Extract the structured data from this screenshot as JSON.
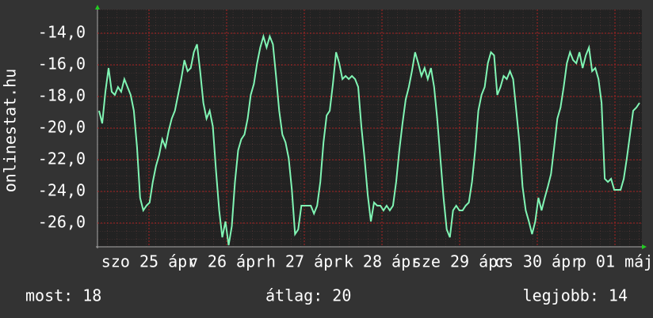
{
  "chart_data": {
    "type": "line",
    "ylabel": "onlinestat.hu",
    "x_labels": [
      "szo 25 ápr",
      "v 26 ápr",
      "h 27 ápr",
      "k 28 ápr",
      "sze 29 ápr",
      "cs 30 ápr",
      "p 01 máj"
    ],
    "ylim": [
      -27.5,
      -12.5
    ],
    "yticks": [
      {
        "value": -14,
        "label": "-14,0"
      },
      {
        "value": -16,
        "label": "-16,0"
      },
      {
        "value": -18,
        "label": "-18,0"
      },
      {
        "value": -20,
        "label": "-20,0"
      },
      {
        "value": -22,
        "label": "-22,0"
      },
      {
        "value": -24,
        "label": "-24,0"
      },
      {
        "value": -26,
        "label": "-26,0"
      }
    ],
    "grid": true,
    "color": "#80f5b4",
    "values": [
      -18.9,
      -19.7,
      -17.7,
      -16.2,
      -17.7,
      -17.9,
      -17.4,
      -17.7,
      -16.9,
      -17.4,
      -17.9,
      -18.9,
      -21.2,
      -24.4,
      -25.2,
      -24.9,
      -24.7,
      -23.4,
      -22.4,
      -21.7,
      -20.7,
      -21.2,
      -20.2,
      -19.4,
      -18.9,
      -17.9,
      -16.9,
      -15.7,
      -16.4,
      -16.2,
      -15.2,
      -14.7,
      -16.4,
      -18.4,
      -19.4,
      -18.9,
      -19.9,
      -22.7,
      -25.2,
      -26.9,
      -25.9,
      -27.4,
      -26.2,
      -23.4,
      -21.4,
      -20.7,
      -20.4,
      -19.4,
      -17.9,
      -17.2,
      -15.9,
      -14.9,
      -14.2,
      -14.9,
      -14.2,
      -14.7,
      -16.7,
      -18.9,
      -20.4,
      -20.9,
      -21.9,
      -23.9,
      -26.7,
      -26.4,
      -24.9,
      -24.9,
      -24.9,
      -24.9,
      -25.4,
      -24.9,
      -23.4,
      -20.9,
      -19.2,
      -18.9,
      -17.2,
      -15.2,
      -15.9,
      -16.9,
      -16.7,
      -16.9,
      -16.7,
      -16.9,
      -17.4,
      -19.9,
      -21.9,
      -24.2,
      -25.9,
      -24.7,
      -24.9,
      -24.9,
      -25.2,
      -24.9,
      -25.2,
      -24.9,
      -23.4,
      -21.4,
      -19.7,
      -18.2,
      -17.4,
      -16.4,
      -15.2,
      -15.9,
      -16.7,
      -16.2,
      -16.9,
      -16.2,
      -17.4,
      -19.4,
      -21.9,
      -24.4,
      -26.4,
      -26.9,
      -25.2,
      -24.9,
      -25.2,
      -25.2,
      -24.9,
      -24.7,
      -23.4,
      -21.4,
      -18.9,
      -17.9,
      -17.4,
      -15.9,
      -15.2,
      -15.4,
      -17.9,
      -17.4,
      -16.7,
      -16.9,
      -16.4,
      -16.9,
      -18.9,
      -20.9,
      -23.7,
      -25.2,
      -25.9,
      -26.7,
      -25.9,
      -24.4,
      -25.2,
      -24.4,
      -23.7,
      -22.9,
      -21.2,
      -19.4,
      -18.7,
      -17.4,
      -15.9,
      -15.2,
      -15.7,
      -15.9,
      -15.2,
      -16.2,
      -15.4,
      -14.9,
      -16.4,
      -16.2,
      -16.9,
      -18.4,
      -23.2,
      -23.4,
      -23.2,
      -23.9,
      -23.9,
      -23.9,
      -23.2,
      -21.9,
      -20.4,
      -18.9,
      -18.7,
      -18.4
    ]
  },
  "footer": {
    "current": "most: 18",
    "average": "átlag: 20",
    "best": "legjobb: 14"
  }
}
